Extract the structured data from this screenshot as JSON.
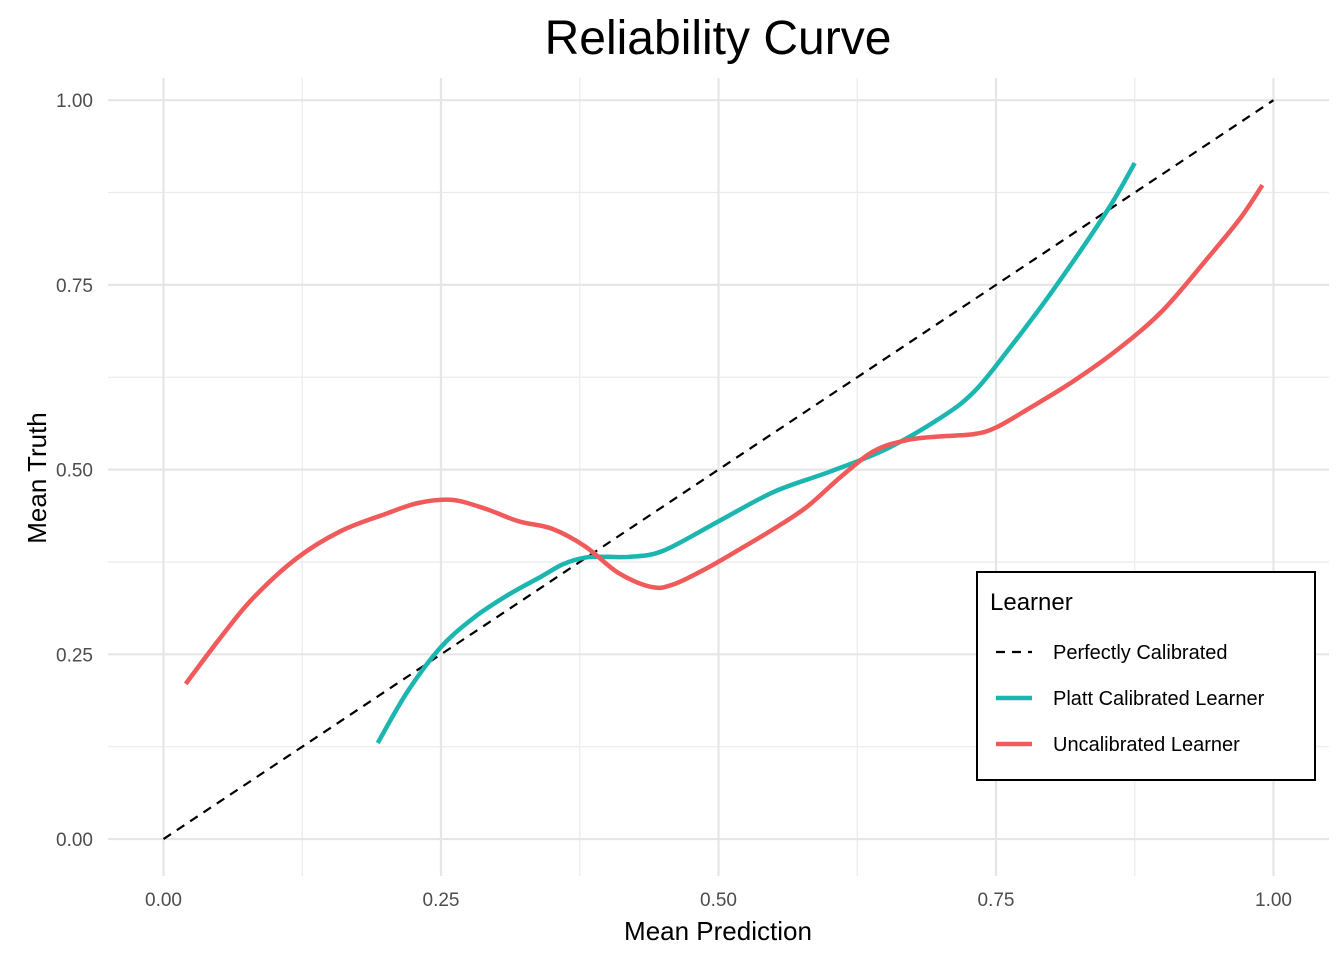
{
  "chart_data": {
    "type": "line",
    "title": "Reliability Curve",
    "xlabel": "Mean Prediction",
    "ylabel": "Mean Truth",
    "xlim": [
      -0.05,
      1.05
    ],
    "ylim": [
      -0.05,
      1.03
    ],
    "x_ticks": [
      0.0,
      0.25,
      0.5,
      0.75,
      1.0
    ],
    "y_ticks": [
      0.0,
      0.25,
      0.5,
      0.75,
      1.0
    ],
    "x_tick_labels": [
      "0.00",
      "0.25",
      "0.50",
      "0.75",
      "1.00"
    ],
    "y_tick_labels": [
      "0.00",
      "0.25",
      "0.50",
      "0.75",
      "1.00"
    ],
    "grid": true,
    "legend": {
      "title": "Learner",
      "placement": "bottom-right"
    },
    "series": [
      {
        "name": "Perfectly Calibrated",
        "color": "#000000",
        "dashed": true,
        "x": [
          0.0,
          1.0
        ],
        "y": [
          0.0,
          1.0
        ]
      },
      {
        "name": "Platt Calibrated Learner",
        "color": "#1BB6AF",
        "dashed": false,
        "x": [
          0.193,
          0.22,
          0.25,
          0.28,
          0.31,
          0.34,
          0.36,
          0.38,
          0.4,
          0.42,
          0.45,
          0.5,
          0.55,
          0.6,
          0.65,
          0.7,
          0.73,
          0.76,
          0.8,
          0.85,
          0.875
        ],
        "y": [
          0.13,
          0.2,
          0.26,
          0.3,
          0.33,
          0.355,
          0.372,
          0.381,
          0.382,
          0.382,
          0.39,
          0.43,
          0.47,
          0.497,
          0.527,
          0.57,
          0.605,
          0.66,
          0.74,
          0.85,
          0.915
        ]
      },
      {
        "name": "Uncalibrated Learner",
        "color": "#F05A5A",
        "dashed": false,
        "x": [
          0.02,
          0.05,
          0.08,
          0.12,
          0.16,
          0.2,
          0.23,
          0.26,
          0.29,
          0.32,
          0.35,
          0.38,
          0.41,
          0.44,
          0.46,
          0.49,
          0.52,
          0.55,
          0.58,
          0.61,
          0.64,
          0.67,
          0.7,
          0.73,
          0.75,
          0.78,
          0.82,
          0.86,
          0.9,
          0.94,
          0.97,
          0.99
        ],
        "y": [
          0.21,
          0.27,
          0.325,
          0.38,
          0.417,
          0.44,
          0.455,
          0.459,
          0.447,
          0.43,
          0.42,
          0.396,
          0.36,
          0.341,
          0.345,
          0.367,
          0.393,
          0.42,
          0.45,
          0.49,
          0.525,
          0.54,
          0.545,
          0.548,
          0.557,
          0.583,
          0.62,
          0.663,
          0.715,
          0.785,
          0.84,
          0.885
        ]
      }
    ]
  }
}
